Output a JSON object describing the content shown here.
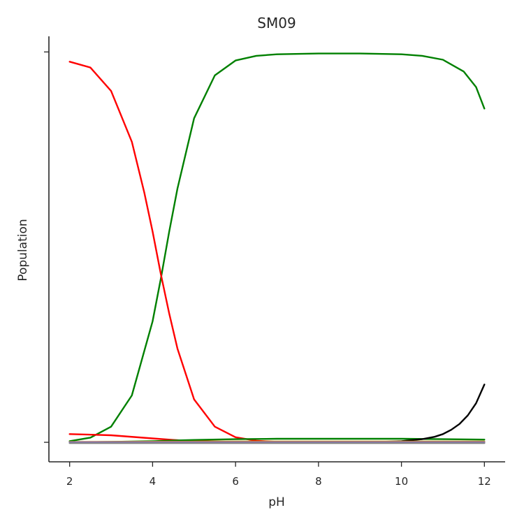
{
  "chart_data": {
    "type": "line",
    "title": "SM09",
    "xlabel": "pH",
    "ylabel": "Population",
    "xlim": [
      1.5,
      12.5
    ],
    "ylim": [
      -0.05,
      1.04
    ],
    "xticks": [
      2,
      4,
      6,
      8,
      10,
      12
    ],
    "xtick_labels": [
      "2",
      "4",
      "6",
      "8",
      "10",
      "12"
    ],
    "yticks": [
      0,
      1
    ],
    "ytick_labels": [
      "",
      ""
    ],
    "grid": false,
    "legend": false,
    "series": [
      {
        "color": "#008000",
        "x": [
          2.0,
          2.5,
          3.0,
          3.5,
          4.0,
          4.2,
          4.4,
          4.6,
          5.0,
          5.5,
          6.0,
          6.5,
          7.0,
          8.0,
          9.0,
          10.0,
          10.5,
          11.0,
          11.5,
          11.8,
          12.0
        ],
        "y": [
          0.003,
          0.012,
          0.04,
          0.12,
          0.31,
          0.42,
          0.54,
          0.65,
          0.83,
          0.94,
          0.978,
          0.99,
          0.994,
          0.996,
          0.996,
          0.994,
          0.99,
          0.98,
          0.95,
          0.91,
          0.855
        ]
      },
      {
        "color": "#ff0000",
        "x": [
          2.0,
          2.5,
          3.0,
          3.5,
          3.8,
          4.0,
          4.2,
          4.4,
          4.6,
          5.0,
          5.5,
          6.0,
          6.5,
          7.0,
          8.0,
          10.0,
          12.0
        ],
        "y": [
          0.975,
          0.96,
          0.9,
          0.77,
          0.64,
          0.54,
          0.43,
          0.33,
          0.24,
          0.11,
          0.04,
          0.013,
          0.004,
          0.001,
          0.0,
          0.0,
          0.0
        ]
      },
      {
        "color": "#ff0000",
        "x": [
          2.0,
          3.0,
          4.0,
          4.5,
          5.0,
          6.0,
          7.0,
          8.0,
          10.0,
          12.0
        ],
        "y": [
          0.021,
          0.018,
          0.01,
          0.006,
          0.003,
          0.001,
          0.0,
          0.0,
          0.0,
          0.0
        ]
      },
      {
        "color": "#008000",
        "x": [
          2.0,
          3.0,
          4.0,
          5.0,
          6.0,
          7.0,
          8.0,
          9.0,
          10.0,
          11.0,
          12.0
        ],
        "y": [
          0.0,
          0.001,
          0.003,
          0.006,
          0.008,
          0.009,
          0.009,
          0.009,
          0.009,
          0.008,
          0.007
        ]
      },
      {
        "color": "#000000",
        "x": [
          2.0,
          6.0,
          8.0,
          9.0,
          9.5,
          10.0,
          10.5,
          10.8,
          11.0,
          11.2,
          11.4,
          11.6,
          11.8,
          12.0
        ],
        "y": [
          0.0,
          0.0,
          0.0,
          0.0005,
          0.001,
          0.003,
          0.008,
          0.014,
          0.021,
          0.032,
          0.047,
          0.069,
          0.1,
          0.148
        ]
      },
      {
        "color": "#b8860b",
        "x": [
          2.0,
          4.0,
          6.0,
          8.0,
          10.0,
          12.0
        ],
        "y": [
          0.001,
          0.0015,
          0.002,
          0.002,
          0.002,
          0.002
        ]
      },
      {
        "color": "#9370db",
        "x": [
          2.0,
          4.0,
          6.0,
          8.0,
          10.0,
          12.0
        ],
        "y": [
          0.0,
          0.0,
          0.0,
          0.0,
          0.0,
          0.0
        ]
      },
      {
        "color": "#808080",
        "x": [
          2.0,
          4.0,
          6.0,
          8.0,
          10.0,
          12.0
        ],
        "y": [
          -0.002,
          -0.002,
          -0.002,
          -0.002,
          -0.002,
          -0.002
        ]
      }
    ]
  }
}
